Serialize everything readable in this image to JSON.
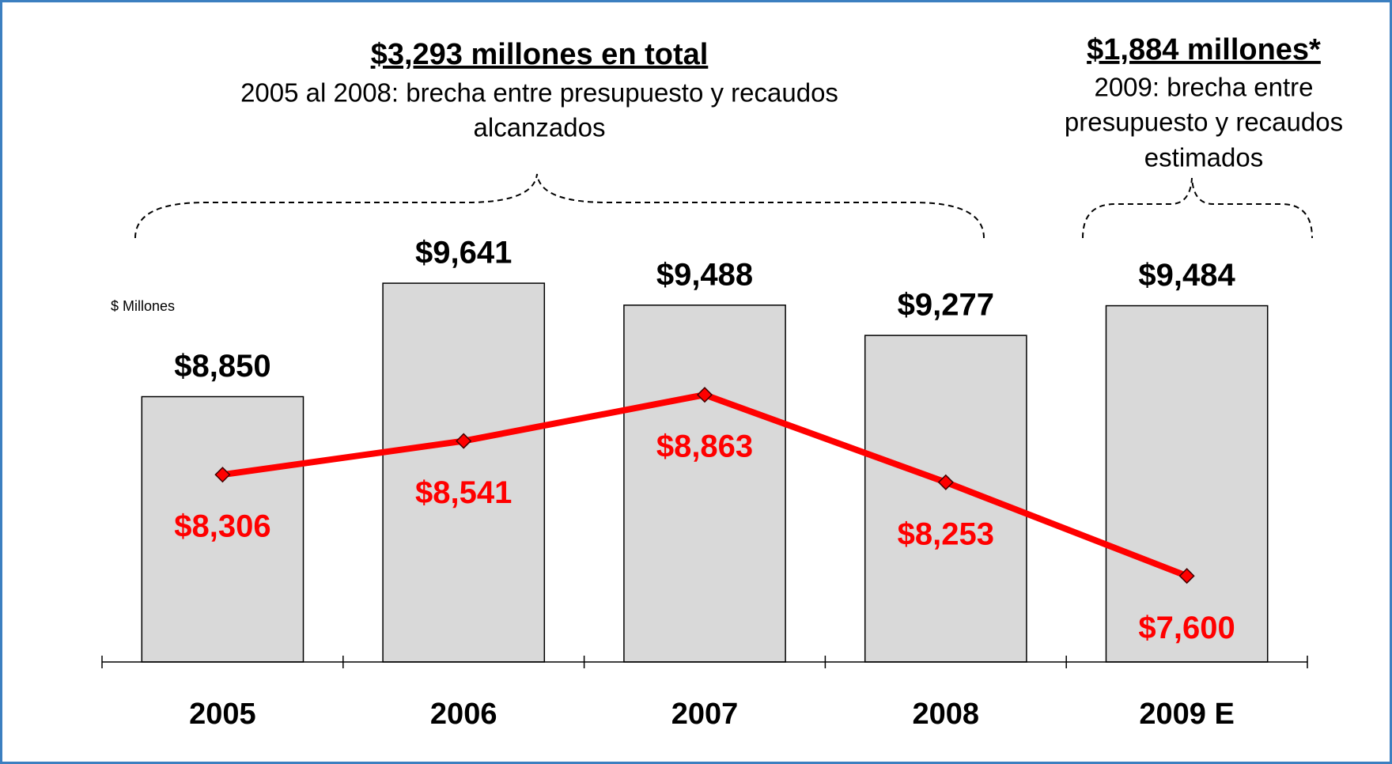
{
  "chart_data": {
    "type": "bar",
    "annotations": [
      {
        "heading": "$3,293 millones en total",
        "lines": [
          "2005 al 2008: brecha entre presupuesto y recaudos",
          "alcanzados"
        ]
      },
      {
        "heading": "$1,884 millones*",
        "lines": [
          "2009: brecha entre",
          "presupuesto y recaudos",
          "estimados"
        ]
      }
    ],
    "y_label": "$ Millones",
    "categories": [
      "2005",
      "2006",
      "2007",
      "2008",
      "2009 E"
    ],
    "ylim": [
      7000,
      10000
    ],
    "series": [
      {
        "type": "bar",
        "color": "#d9d9d9",
        "label_color": "#000000",
        "values": [
          8850,
          9641,
          9488,
          9277,
          9484
        ],
        "value_labels": [
          "$8,850",
          "$9,641",
          "$9,488",
          "$9,277",
          "$9,484"
        ]
      },
      {
        "type": "line",
        "color": "#ff0000",
        "label_color": "#ff0000",
        "values": [
          8306,
          8541,
          8863,
          8253,
          7600
        ],
        "value_labels": [
          "$8,306",
          "$8,541",
          "$8,863",
          "$8,253",
          "$7,600"
        ]
      }
    ]
  }
}
